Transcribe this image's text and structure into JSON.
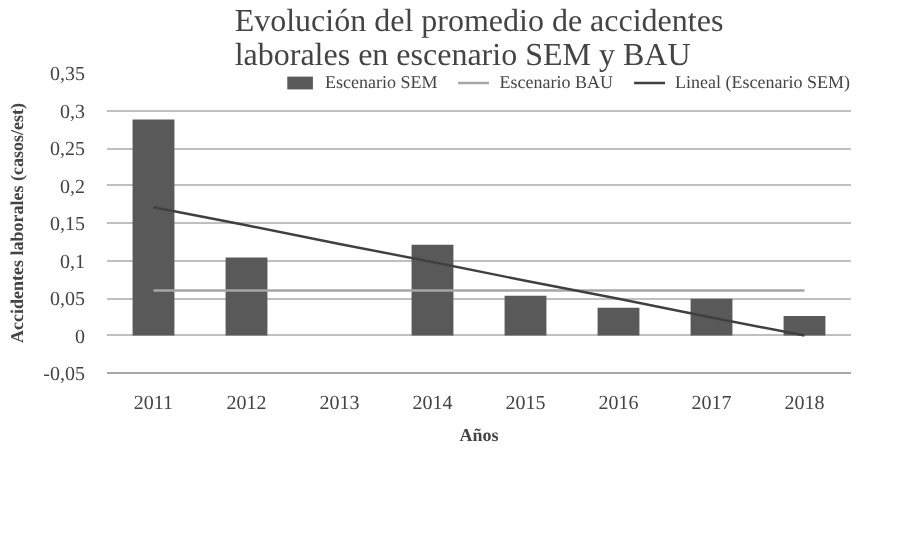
{
  "chart_data": {
    "type": "bar",
    "title": "Evolución del promedio de accidentes laborales en escenario SEM y BAU",
    "xlabel": "Años",
    "ylabel": "Accidentes laborales (casos/est)",
    "categories": [
      "2011",
      "2012",
      "2013",
      "2014",
      "2015",
      "2016",
      "2017",
      "2018"
    ],
    "series": [
      {
        "name": "Escenario SEM",
        "color": "#595959",
        "values": [
          0.288,
          0.104,
          0,
          0.121,
          0.053,
          0.037,
          0.049,
          0.026
        ]
      },
      {
        "name": "Escenario BAU",
        "type": "line",
        "color": "#a6a6a6",
        "values": [
          0.06,
          0.06,
          0.06,
          0.06,
          0.06,
          0.06,
          0.06,
          0.06
        ]
      },
      {
        "name": "Lineal (Escenario SEM)",
        "type": "line",
        "color": "#404040",
        "values": [
          0.171,
          0.147,
          0.122,
          0.098,
          0.073,
          0.049,
          0.024,
          0.0
        ]
      }
    ],
    "ylim": [
      -0.05,
      0.35
    ],
    "yticks": [
      {
        "value": -0.05,
        "label": "-0,05"
      },
      {
        "value": 0,
        "label": "0"
      },
      {
        "value": 0.05,
        "label": "0,05"
      },
      {
        "value": 0.1,
        "label": "0,1"
      },
      {
        "value": 0.15,
        "label": "0,15"
      },
      {
        "value": 0.2,
        "label": "0,2"
      },
      {
        "value": 0.25,
        "label": "0,25"
      },
      {
        "value": 0.3,
        "label": "0,3"
      },
      {
        "value": 0.35,
        "label": "0,35"
      }
    ],
    "grid": "y",
    "legend": "top right"
  }
}
